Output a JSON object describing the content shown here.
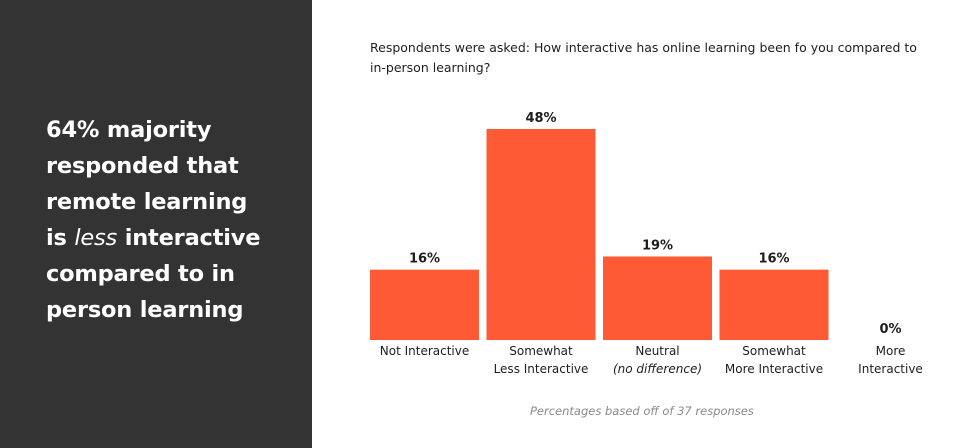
{
  "headline": {
    "line1": "64% majority",
    "line2": "responded that",
    "line3": "remote learning",
    "line4_prefix": "is ",
    "line4_emphasis": "less",
    "line4_suffix": " interactive",
    "line5": "compared to in",
    "line6": "person learning"
  },
  "question_line1": "Respondents were asked: How interactive has online learning been fo you compared to",
  "question_line2": "in-person learning?",
  "footnote": "Percentages based off of 37 responses",
  "colors": {
    "bar": "#FF5A36",
    "panel": "#333333"
  },
  "chart_data": {
    "type": "bar",
    "categories": [
      "Not Interactive",
      "Somewhat Less Interactive",
      "Neutral (no difference)",
      "Somewhat More Interactive",
      "More Interactive"
    ],
    "category_lines": [
      [
        {
          "text": "Not Interactive",
          "italic": false
        }
      ],
      [
        {
          "text": "Somewhat",
          "italic": false
        },
        {
          "text": "Less Interactive",
          "italic": false
        }
      ],
      [
        {
          "text": "Neutral",
          "italic": false
        },
        {
          "text": "(no difference)",
          "italic": true
        }
      ],
      [
        {
          "text": "Somewhat",
          "italic": false
        },
        {
          "text": "More Interactive",
          "italic": false
        }
      ],
      [
        {
          "text": "More",
          "italic": false
        },
        {
          "text": "Interactive",
          "italic": false
        }
      ]
    ],
    "values": [
      16,
      48,
      19,
      16,
      0
    ],
    "value_labels": [
      "16%",
      "48%",
      "19%",
      "16%",
      "0%"
    ],
    "unit": "%",
    "ylim": [
      0,
      48
    ],
    "grid": false,
    "legend": "none"
  }
}
